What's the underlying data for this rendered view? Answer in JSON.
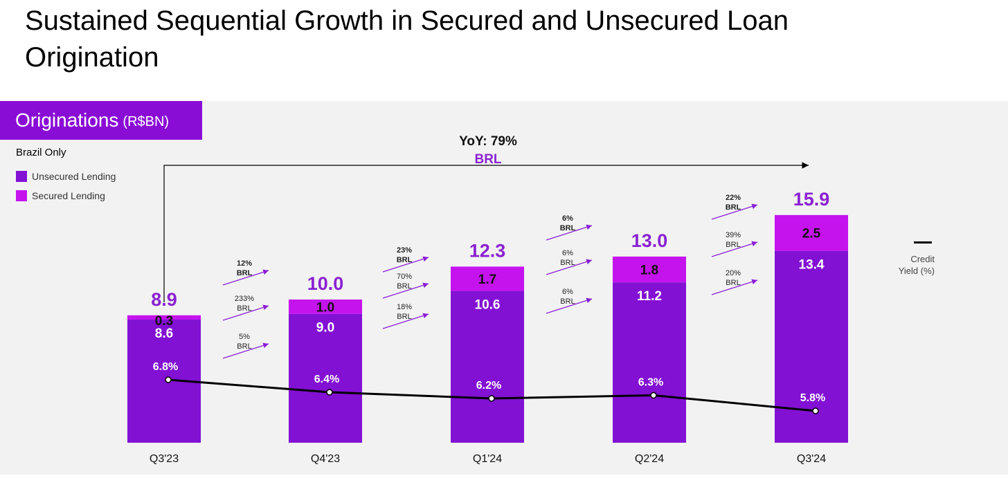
{
  "page": {
    "title": "Sustained Sequential Growth in Secured and Unsecured Loan Origination"
  },
  "badge": {
    "main": "Originations",
    "unit": "(R$BN)"
  },
  "subtitle": "Brazil Only",
  "legend": {
    "unsecured": "Unsecured Lending",
    "secured": "Secured Lending",
    "line_label": "Credit Yield (%)"
  },
  "yoy": {
    "label": "YoY: 79%",
    "sub": "BRL"
  },
  "colors": {
    "unsecured": "#8211d4",
    "secured": "#c513ee",
    "total_label": "#8a21d1",
    "line": "#000000",
    "arrow": "#8a1fd6"
  },
  "chart_data": {
    "type": "bar",
    "stacked": true,
    "categories": [
      "Q3'23",
      "Q4'23",
      "Q1'24",
      "Q2'24",
      "Q3'24"
    ],
    "series": [
      {
        "name": "Unsecured Lending",
        "values": [
          8.6,
          9.0,
          10.6,
          11.2,
          13.4
        ]
      },
      {
        "name": "Secured Lending",
        "values": [
          0.3,
          1.0,
          1.7,
          1.8,
          2.5
        ]
      }
    ],
    "totals": [
      8.9,
      10.0,
      12.3,
      13.0,
      15.9
    ],
    "total_labels": [
      "8.9",
      "10.0",
      "12.3",
      "13.0",
      "15.9"
    ],
    "unsecured_labels": [
      "8.6",
      "9.0",
      "10.6",
      "11.2",
      "13.4"
    ],
    "secured_labels": [
      "0.3",
      "1.0",
      "1.7",
      "1.8",
      "2.5"
    ],
    "ylim": [
      0,
      16.5
    ],
    "line": {
      "name": "Credit Yield (%)",
      "values": [
        6.8,
        6.4,
        6.2,
        6.3,
        5.8
      ],
      "labels": [
        "6.8%",
        "6.4%",
        "6.2%",
        "6.3%",
        "5.8%"
      ]
    },
    "growth_annotations": [
      [
        {
          "pct": "12%",
          "cur": "BRL",
          "bold": true
        },
        {
          "pct": "233%",
          "cur": "BRL",
          "bold": false
        },
        {
          "pct": "5%",
          "cur": "BRL",
          "bold": false
        }
      ],
      [
        {
          "pct": "23%",
          "cur": "BRL",
          "bold": true
        },
        {
          "pct": "70%",
          "cur": "BRL",
          "bold": false
        },
        {
          "pct": "18%",
          "cur": "BRL",
          "bold": false
        }
      ],
      [
        {
          "pct": "6%",
          "cur": "BRL",
          "bold": true
        },
        {
          "pct": "6%",
          "cur": "BRL",
          "bold": false
        },
        {
          "pct": "6%",
          "cur": "BRL",
          "bold": false
        }
      ],
      [
        {
          "pct": "22%",
          "cur": "BRL",
          "bold": true
        },
        {
          "pct": "39%",
          "cur": "BRL",
          "bold": false
        },
        {
          "pct": "20%",
          "cur": "BRL",
          "bold": false
        }
      ]
    ],
    "grid": false,
    "legend_position": "top-left"
  }
}
